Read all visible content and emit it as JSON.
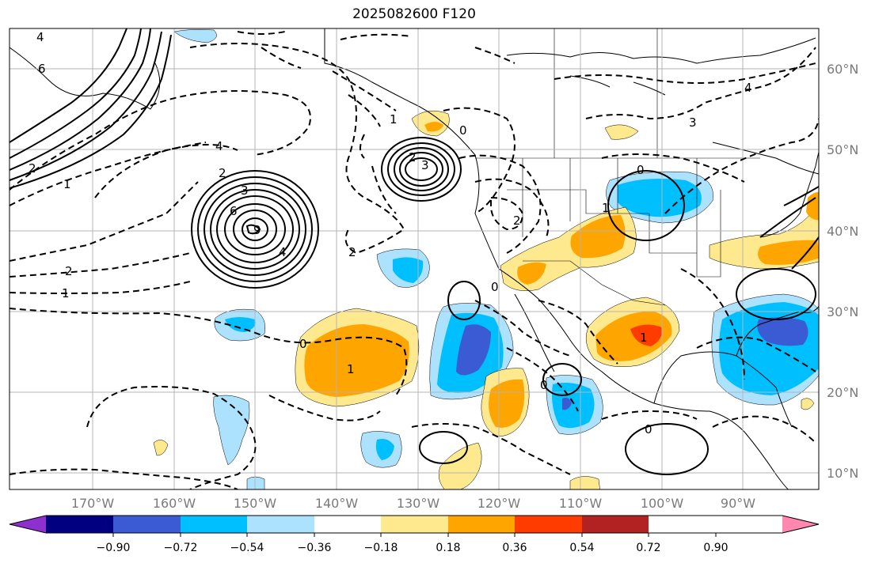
{
  "title": "2025082600 F120",
  "map": {
    "lon_labels": [
      "170°W",
      "160°W",
      "150°W",
      "140°W",
      "130°W",
      "120°W",
      "110°W",
      "100°W",
      "90°W"
    ],
    "lat_labels": [
      "60°N",
      "50°N",
      "40°N",
      "30°N",
      "20°N",
      "10°N"
    ],
    "contour_labels": {
      "alaska_4": "4",
      "alaska_6": "6",
      "west_2": "2",
      "west_1": "1",
      "west_n4": "4",
      "low1_2": "2",
      "low1_3": "3",
      "low1_6": "6",
      "low1_4": "4",
      "low1_9": "9",
      "low2_1": "1",
      "low2_2": "2",
      "low2_3": "3",
      "low2_0": "0",
      "low2_2b": "2",
      "zero_main": "0",
      "zero_mid": "0",
      "zero_b": "0",
      "zero_c": "0",
      "zero_d": "0",
      "east_3": "3",
      "east_4": "4",
      "east_1": "1",
      "east_2": "2",
      "cal_2": "2",
      "mex_1": "1",
      "sub_1": "1",
      "gulf_1": "1"
    }
  },
  "colorbar": {
    "tick_labels": [
      "−0.90",
      "−0.72",
      "−0.54",
      "−0.36",
      "−0.18",
      "0.18",
      "0.36",
      "0.54",
      "0.72",
      "0.90"
    ],
    "colors": [
      "#8e2fd0",
      "#000080",
      "#3a5bd4",
      "#00bfff",
      "#ade2ff",
      "#ffffff",
      "#ffe98f",
      "#ffa500",
      "#ff3c00",
      "#b22222",
      "#ff87b0"
    ]
  },
  "colors": {
    "lightblue": "#ade2ff",
    "blue": "#00bfff",
    "royal": "#3a5bd4",
    "yellow": "#ffe98f",
    "orange": "#ffa500",
    "red": "#ff3c00",
    "grid": "#b4b4b4",
    "contour": "#000000"
  }
}
